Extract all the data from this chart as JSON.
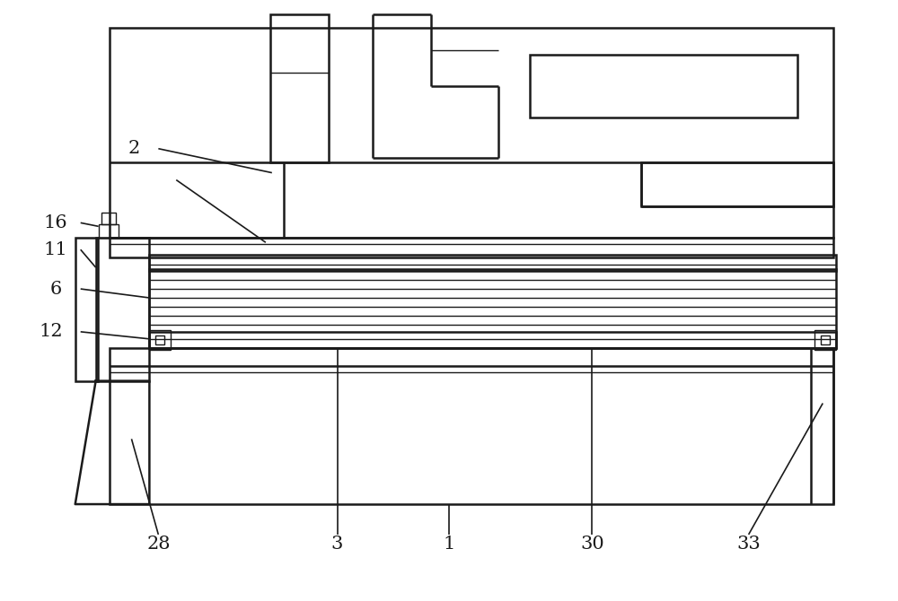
{
  "background_color": "#ffffff",
  "line_color": "#1a1a1a",
  "lw_main": 1.8,
  "lw_thin": 1.0,
  "label_fontsize": 15,
  "figsize": [
    10.0,
    6.7
  ],
  "dpi": 100
}
